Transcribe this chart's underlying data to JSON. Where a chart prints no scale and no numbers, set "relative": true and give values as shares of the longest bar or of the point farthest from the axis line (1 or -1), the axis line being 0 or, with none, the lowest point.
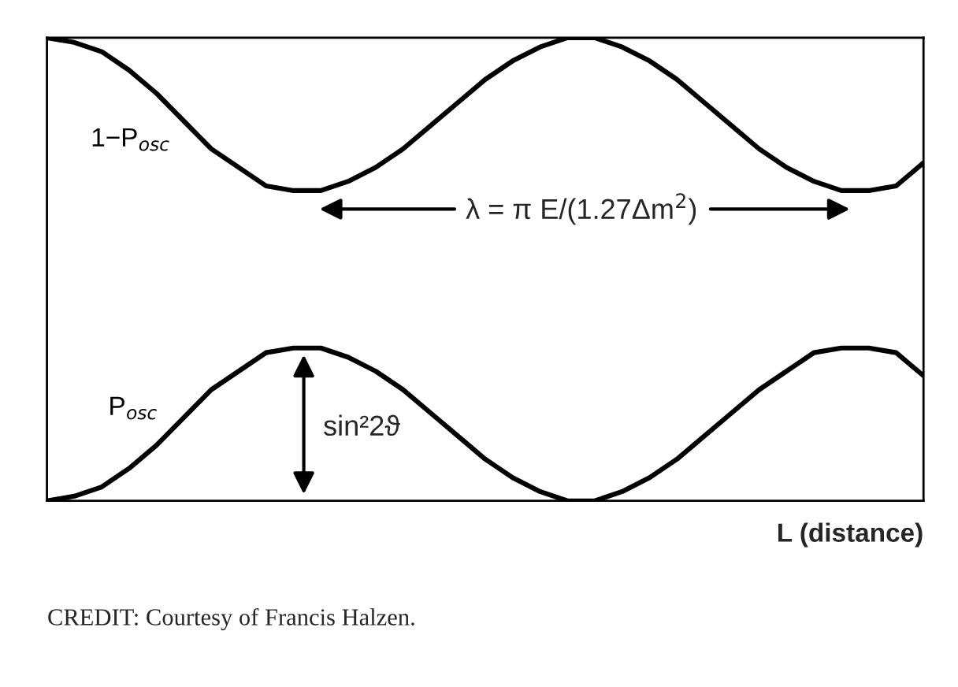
{
  "chart_data": {
    "type": "line",
    "relative": true,
    "xlabel": "L (distance)",
    "legend": false,
    "grid": false,
    "tick_labels": false,
    "marker": "none",
    "line_style": "solid",
    "categories": [
      null,
      null,
      null,
      null,
      null,
      null,
      null,
      null,
      null,
      null,
      null,
      null,
      null,
      null,
      null,
      null,
      null,
      null,
      null,
      null,
      null,
      null,
      null,
      null,
      null,
      null,
      null,
      null,
      null,
      null,
      null,
      null,
      null
    ],
    "series": [
      {
        "name": "1−P$_{osc}$",
        "color": "#000000",
        "values": [
          1.0,
          0.99,
          0.97,
          0.93,
          0.88,
          0.82,
          0.76,
          0.72,
          0.68,
          0.67,
          0.67,
          0.69,
          0.72,
          0.76,
          0.81,
          0.86,
          0.91,
          0.95,
          0.98,
          1.0,
          1.0,
          0.98,
          0.95,
          0.91,
          0.86,
          0.81,
          0.76,
          0.72,
          0.69,
          0.67,
          0.67,
          0.68,
          0.73
        ]
      },
      {
        "name": "P$_{osc}$",
        "color": "#000000",
        "values": [
          0.0,
          0.01,
          0.03,
          0.07,
          0.12,
          0.18,
          0.24,
          0.28,
          0.32,
          0.33,
          0.33,
          0.31,
          0.28,
          0.24,
          0.19,
          0.14,
          0.09,
          0.05,
          0.02,
          0.0,
          0.0,
          0.02,
          0.05,
          0.09,
          0.14,
          0.19,
          0.24,
          0.28,
          0.32,
          0.33,
          0.33,
          0.32,
          0.27
        ]
      }
    ],
    "annotations": [
      "λ = π E/(1.27Δm$^{2}$)",
      "sin²2ϑ",
      "CREDIT: Courtesy of Francis Halzen."
    ]
  }
}
